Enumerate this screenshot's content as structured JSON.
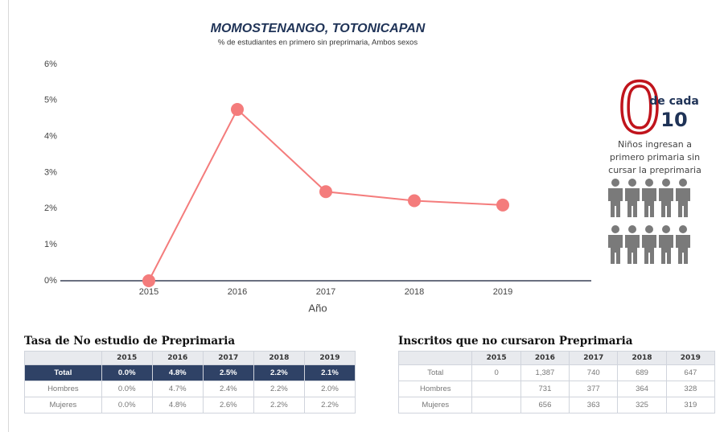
{
  "chart_data": {
    "type": "line",
    "title": "MOMOSTENANGO, TOTONICAPAN",
    "subtitle": "% de estudiantes en primero sin preprimaria, Ambos sexos",
    "x_label": "Año",
    "categories": [
      "2015",
      "2016",
      "2017",
      "2018",
      "2019"
    ],
    "series": [
      {
        "name": "Ambos sexos",
        "color": "#f47c7c",
        "values": [
          0,
          4.75,
          2.47,
          2.22,
          2.1
        ]
      }
    ],
    "ylim": [
      0,
      6
    ],
    "yticks": [
      {
        "value": 0,
        "label": "0%"
      },
      {
        "value": 1,
        "label": "1%"
      },
      {
        "value": 2,
        "label": "2%"
      },
      {
        "value": 3,
        "label": "3%"
      },
      {
        "value": 4,
        "label": "4%"
      },
      {
        "value": 5,
        "label": "5%"
      },
      {
        "value": 6,
        "label": "6%"
      }
    ],
    "grid": false
  },
  "infographic": {
    "number": "0",
    "of": "de cada",
    "total": "10",
    "lines": [
      "Niños ingresan a",
      "primero primaria sin",
      "cursar la preprimaria"
    ]
  },
  "tables": [
    {
      "title": "Tasa de No estudio de Preprimaria",
      "columns": [
        "2015",
        "2016",
        "2017",
        "2018",
        "2019"
      ],
      "rows": [
        {
          "label": "Total",
          "cells": [
            "0.0%",
            "4.8%",
            "2.5%",
            "2.2%",
            "2.1%"
          ]
        },
        {
          "label": "Hombres",
          "cells": [
            "0.0%",
            "4.7%",
            "2.4%",
            "2.2%",
            "2.0%"
          ]
        },
        {
          "label": "Mujeres",
          "cells": [
            "0.0%",
            "4.8%",
            "2.6%",
            "2.2%",
            "2.2%"
          ]
        }
      ]
    },
    {
      "title": "Inscritos que no cursaron Preprimaria",
      "columns": [
        "2015",
        "2016",
        "2017",
        "2018",
        "2019"
      ],
      "rows": [
        {
          "label": "Total",
          "cells": [
            "0",
            "1,387",
            "740",
            "689",
            "647"
          ]
        },
        {
          "label": "Hombres",
          "cells": [
            null,
            "731",
            "377",
            "364",
            "328"
          ]
        },
        {
          "label": "Mujeres",
          "cells": [
            null,
            "656",
            "363",
            "325",
            "319"
          ]
        }
      ]
    }
  ]
}
